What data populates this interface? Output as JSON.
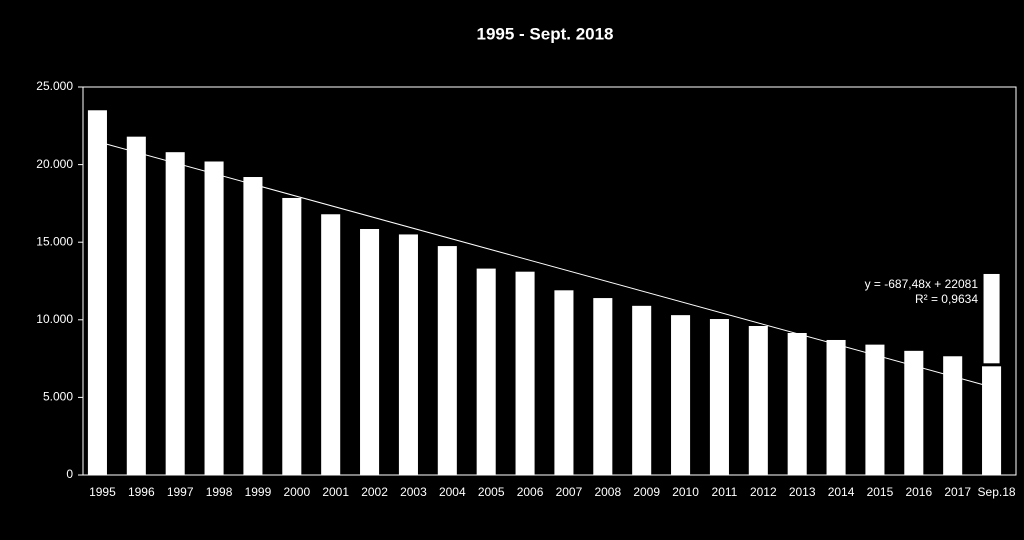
{
  "chart_data": {
    "type": "bar",
    "title": "1995 -  Sept. 2018",
    "categories": [
      "1995",
      "1996",
      "1997",
      "1998",
      "1999",
      "2000",
      "2001",
      "2002",
      "2003",
      "2004",
      "2005",
      "2006",
      "2007",
      "2008",
      "2009",
      "2010",
      "2011",
      "2012",
      "2013",
      "2014",
      "2015",
      "2016",
      "2017",
      "Sep.18"
    ],
    "series": [
      {
        "color": "#ffffff",
        "values": [
          23500,
          21800,
          20800,
          20200,
          19200,
          17850,
          16800,
          15850,
          15500,
          14750,
          13300,
          13100,
          11900,
          11400,
          10900,
          10300,
          10050,
          9600,
          9150,
          8700,
          8400,
          8000,
          7650,
          7100
        ]
      },
      {
        "color": "#ffffff",
        "values": [
          null,
          null,
          null,
          null,
          null,
          null,
          null,
          null,
          null,
          null,
          null,
          null,
          null,
          null,
          null,
          null,
          null,
          null,
          null,
          null,
          null,
          null,
          null,
          5950
        ]
      }
    ],
    "ylim": [
      0,
      25000
    ],
    "yticks": [
      0,
      {
        "value": 5000,
        "label": "5.000"
      },
      {
        "value": 10000,
        "label": "10.000"
      },
      {
        "value": 15000,
        "label": "15.000"
      },
      {
        "value": 20000,
        "label": "20.000"
      },
      {
        "value": 25000,
        "label": "25.000"
      }
    ],
    "trendline": {
      "slope": -687.48,
      "intercept": 22081,
      "color": "#ffffff",
      "label": "y = -687,48x + 22081",
      "r2_label": "R² = 0,9634"
    }
  }
}
